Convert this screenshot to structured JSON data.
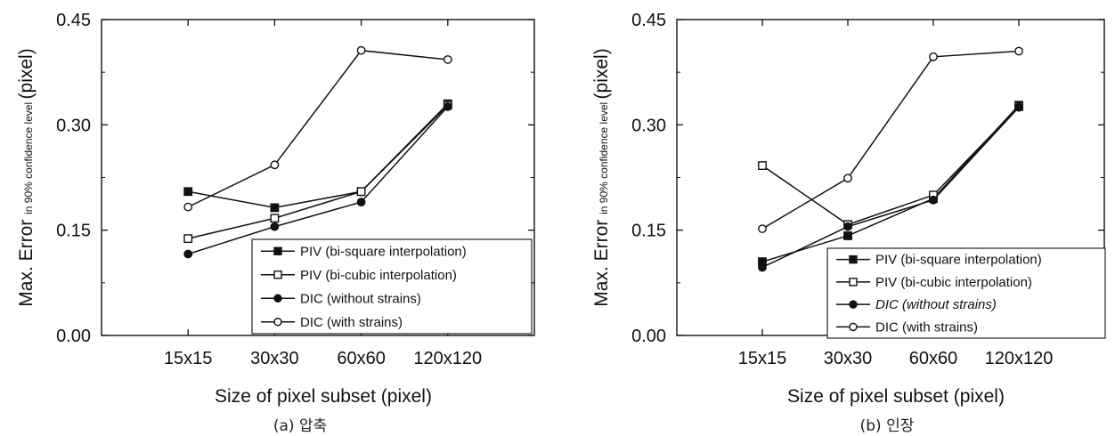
{
  "chart_data": [
    {
      "type": "line",
      "caption": "(a) 압축",
      "xlabel": "Size of pixel subset (pixel)",
      "ylabel": {
        "main": "Max. Error",
        "sub": "in 90% confidence level",
        "unit": "(pixel)"
      },
      "categories": [
        "15x15",
        "30x30",
        "60x60",
        "120x120"
      ],
      "ylim": [
        0.0,
        0.45
      ],
      "yticks": [
        "0.00",
        "0.15",
        "0.30",
        "0.45"
      ],
      "legend_position": "bottom-right",
      "series": [
        {
          "name": "PIV (bi-square interpolation)",
          "marker": "filled-square",
          "italic": false,
          "values": [
            0.205,
            0.182,
            0.205,
            0.33
          ]
        },
        {
          "name": "PIV (bi-cubic interpolation)",
          "marker": "open-square",
          "italic": false,
          "values": [
            0.138,
            0.167,
            0.205,
            0.328
          ]
        },
        {
          "name": "DIC (without strains)",
          "marker": "filled-circle",
          "italic": false,
          "values": [
            0.116,
            0.155,
            0.19,
            0.326
          ]
        },
        {
          "name": "DIC (with strains)",
          "marker": "open-circle",
          "italic": false,
          "values": [
            0.183,
            0.243,
            0.406,
            0.393
          ]
        }
      ]
    },
    {
      "type": "line",
      "caption": "(b) 인장",
      "xlabel": "Size of pixel subset (pixel)",
      "ylabel": {
        "main": "Max. Error",
        "sub": "in 90% confidence level",
        "unit": "(pixel)"
      },
      "categories": [
        "15x15",
        "30x30",
        "60x60",
        "120x120"
      ],
      "ylim": [
        0.0,
        0.45
      ],
      "yticks": [
        "0.00",
        "0.15",
        "0.30",
        "0.45"
      ],
      "legend_position": "bottom-right",
      "series": [
        {
          "name": "PIV (bi-square interpolation)",
          "marker": "filled-square",
          "italic": false,
          "values": [
            0.105,
            0.142,
            0.195,
            0.328
          ]
        },
        {
          "name": "PIV (bi-cubic interpolation)",
          "marker": "open-square",
          "italic": false,
          "values": [
            0.242,
            0.158,
            0.2,
            0.326
          ]
        },
        {
          "name": "DIC (without strains)",
          "marker": "filled-circle",
          "italic": true,
          "values": [
            0.097,
            0.155,
            0.193,
            0.325
          ]
        },
        {
          "name": "DIC (with strains)",
          "marker": "open-circle",
          "italic": false,
          "values": [
            0.152,
            0.224,
            0.397,
            0.405
          ]
        }
      ]
    }
  ],
  "colors": {
    "ink": "#111111",
    "background": "#ffffff"
  }
}
